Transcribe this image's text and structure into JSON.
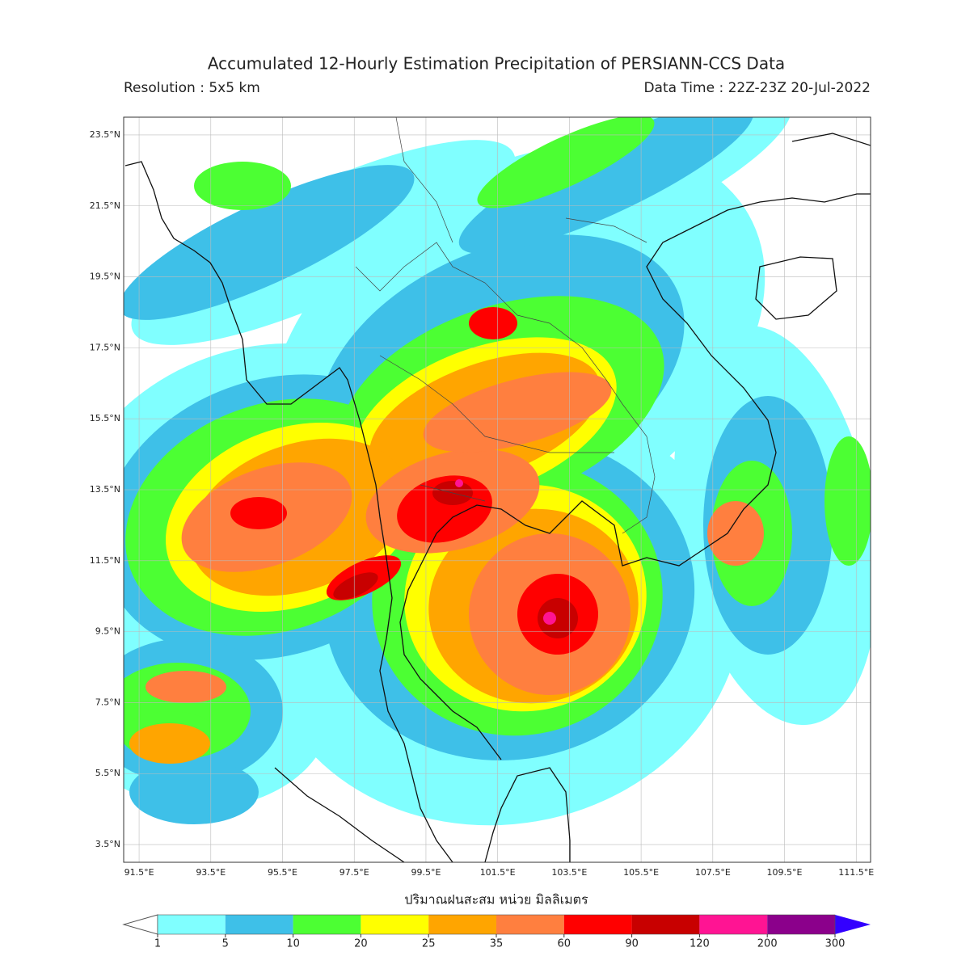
{
  "title": "Accumulated 12-Hourly Estimation Precipitation of PERSIANN-CCS Data",
  "resolution": "Resolution : 5x5 km",
  "data_time": "Data Time : 22Z-23Z 20-Jul-2022",
  "map": {
    "lonlim": [
      91.07,
      111.9
    ],
    "latlim": [
      3.0,
      24.0
    ],
    "lat_ticks": [
      {
        "value": 23.5,
        "label": "23.5°N"
      },
      {
        "value": 21.5,
        "label": "21.5°N"
      },
      {
        "value": 19.5,
        "label": "19.5°N"
      },
      {
        "value": 17.5,
        "label": "17.5°N"
      },
      {
        "value": 15.5,
        "label": "15.5°N"
      },
      {
        "value": 13.5,
        "label": "13.5°N"
      },
      {
        "value": 11.5,
        "label": "11.5°N"
      },
      {
        "value": 9.5,
        "label": "9.5°N"
      },
      {
        "value": 7.5,
        "label": "7.5°N"
      },
      {
        "value": 5.5,
        "label": "5.5°N"
      },
      {
        "value": 3.5,
        "label": "3.5°N"
      }
    ],
    "lon_ticks": [
      {
        "value": 91.5,
        "label": "91.5°E"
      },
      {
        "value": 93.5,
        "label": "93.5°E"
      },
      {
        "value": 95.5,
        "label": "95.5°E"
      },
      {
        "value": 97.5,
        "label": "97.5°E"
      },
      {
        "value": 99.5,
        "label": "99.5°E"
      },
      {
        "value": 101.5,
        "label": "101.5°E"
      },
      {
        "value": 103.5,
        "label": "103.5°E"
      },
      {
        "value": 105.5,
        "label": "105.5°E"
      },
      {
        "value": 107.5,
        "label": "107.5°E"
      },
      {
        "value": 109.5,
        "label": "109.5°E"
      },
      {
        "value": 111.5,
        "label": "111.5°E"
      }
    ]
  },
  "colorbar": {
    "label": "ปริมาณฝนสะสม หน่วย มิลลิเมตร",
    "ticks": [
      1,
      5,
      10,
      20,
      25,
      35,
      60,
      90,
      120,
      200,
      300
    ],
    "colors": [
      "#80ffff",
      "#3ec0e8",
      "#4cff33",
      "#ffff00",
      "#ffa500",
      "#ff7f3f",
      "#ff0000",
      "#c80000",
      "#ff1493",
      "#8b008b"
    ],
    "under_color": "#ffffff",
    "over_color": "#3300ff"
  }
}
